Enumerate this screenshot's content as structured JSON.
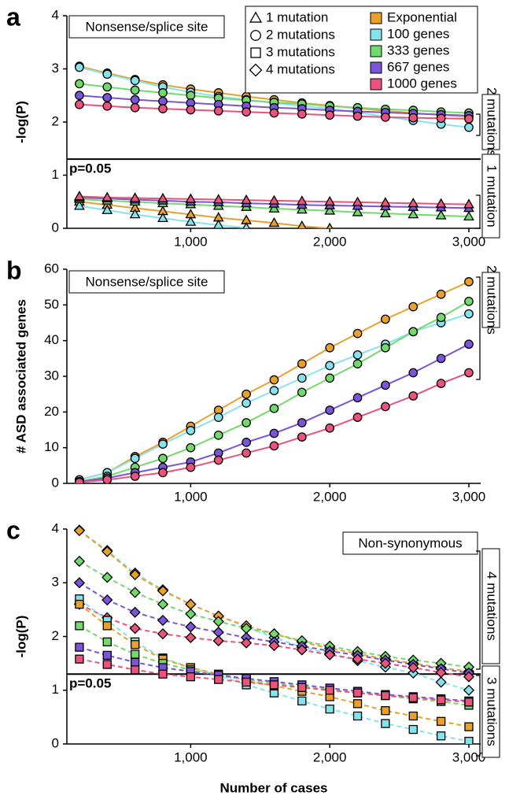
{
  "chart_data": [
    {
      "type": "line",
      "panel_label": "a",
      "ylabel": "-log(P)",
      "line_style": "solid",
      "x": [
        200,
        400,
        600,
        800,
        1000,
        1200,
        1400,
        1600,
        1800,
        2000,
        2200,
        2400,
        2600,
        2800,
        3000
      ],
      "xlim": [
        110,
        3085
      ],
      "xticks": [
        {
          "value": 1000,
          "label": "1,000"
        },
        {
          "value": 2000,
          "label": "2,000"
        },
        {
          "value": 3000,
          "label": "3,000"
        }
      ],
      "ylim": [
        0,
        4
      ],
      "yticks": [
        0,
        1,
        2,
        3,
        4
      ],
      "hline": 1.301,
      "hline_label": "p=0.05",
      "annotations": [
        "Nonsense/splice site",
        "2 mutations",
        "1 mutation"
      ],
      "legend": {
        "markers": [
          {
            "label": "1 mutation",
            "marker": "triangle"
          },
          {
            "label": "2 mutations",
            "marker": "circle"
          },
          {
            "label": "3 mutations",
            "marker": "square"
          },
          {
            "label": "4 mutations",
            "marker": "diamond"
          }
        ],
        "colors": [
          {
            "label": "Exponential",
            "color": "#e9a12b"
          },
          {
            "label": "100 genes",
            "color": "#86e3ee"
          },
          {
            "label": "333 genes",
            "color": "#72da6c"
          },
          {
            "label": "667 genes",
            "color": "#7a55d9"
          },
          {
            "label": "1000 genes",
            "color": "#e9537c"
          }
        ]
      },
      "series": [
        {
          "marker": "circle",
          "color": "#e9a12b",
          "values": [
            3.05,
            2.92,
            2.8,
            2.7,
            2.62,
            2.55,
            2.48,
            2.42,
            2.36,
            2.31,
            2.26,
            2.21,
            2.17,
            2.13,
            2.1
          ]
        },
        {
          "marker": "circle",
          "color": "#86e3ee",
          "values": [
            3.03,
            2.9,
            2.78,
            2.66,
            2.56,
            2.48,
            2.42,
            2.36,
            2.3,
            2.25,
            2.18,
            2.1,
            2.03,
            1.96,
            1.9
          ]
        },
        {
          "marker": "circle",
          "color": "#72da6c",
          "values": [
            2.72,
            2.66,
            2.6,
            2.55,
            2.5,
            2.45,
            2.41,
            2.37,
            2.34,
            2.3,
            2.27,
            2.24,
            2.22,
            2.19,
            2.17
          ]
        },
        {
          "marker": "circle",
          "color": "#7a55d9",
          "values": [
            2.5,
            2.46,
            2.42,
            2.39,
            2.36,
            2.33,
            2.3,
            2.27,
            2.25,
            2.22,
            2.2,
            2.18,
            2.16,
            2.14,
            2.12
          ]
        },
        {
          "marker": "circle",
          "color": "#e9537c",
          "values": [
            2.33,
            2.3,
            2.27,
            2.25,
            2.23,
            2.21,
            2.19,
            2.17,
            2.15,
            2.13,
            2.11,
            2.09,
            2.08,
            2.07,
            2.06
          ]
        },
        {
          "marker": "triangle",
          "color": "#e9a12b",
          "values": [
            0.5,
            0.44,
            0.38,
            0.32,
            0.26,
            0.2,
            0.15,
            0.1,
            0.04,
            0,
            null,
            null,
            null,
            null,
            null
          ]
        },
        {
          "marker": "triangle",
          "color": "#86e3ee",
          "values": [
            0.42,
            0.34,
            0.26,
            0.19,
            0.12,
            0.06,
            0.01,
            null,
            null,
            null,
            null,
            null,
            null,
            null,
            null
          ]
        },
        {
          "marker": "triangle",
          "color": "#72da6c",
          "values": [
            0.55,
            0.52,
            0.5,
            0.47,
            0.45,
            0.42,
            0.4,
            0.37,
            0.35,
            0.33,
            0.3,
            0.28,
            0.26,
            0.24,
            0.22
          ]
        },
        {
          "marker": "triangle",
          "color": "#7a55d9",
          "values": [
            0.58,
            0.56,
            0.54,
            0.52,
            0.5,
            0.49,
            0.47,
            0.46,
            0.44,
            0.43,
            0.42,
            0.41,
            0.4,
            0.39,
            0.38
          ]
        },
        {
          "marker": "triangle",
          "color": "#e9537c",
          "values": [
            0.6,
            0.58,
            0.57,
            0.56,
            0.55,
            0.54,
            0.53,
            0.52,
            0.51,
            0.5,
            0.49,
            0.48,
            0.47,
            0.46,
            0.45
          ]
        }
      ]
    },
    {
      "type": "line",
      "panel_label": "b",
      "ylabel": "# ASD associated genes",
      "line_style": "solid",
      "x": [
        200,
        400,
        600,
        800,
        1000,
        1200,
        1400,
        1600,
        1800,
        2000,
        2200,
        2400,
        2600,
        2800,
        3000
      ],
      "xlim": [
        110,
        3085
      ],
      "xticks": [
        {
          "value": 1000,
          "label": "1,000"
        },
        {
          "value": 2000,
          "label": "2,000"
        },
        {
          "value": 3000,
          "label": "3,000"
        }
      ],
      "ylim": [
        0,
        60
      ],
      "yticks": [
        0,
        10,
        20,
        30,
        40,
        50,
        60
      ],
      "annotations": [
        "Nonsense/splice site",
        "2 mutations"
      ],
      "series": [
        {
          "marker": "circle",
          "color": "#e9a12b",
          "values": [
            1,
            3,
            7.5,
            11.5,
            16,
            20.5,
            25,
            29,
            33.5,
            38,
            42,
            46,
            49.5,
            53,
            56.5
          ]
        },
        {
          "marker": "circle",
          "color": "#86e3ee",
          "values": [
            1,
            3,
            7,
            11,
            14.8,
            18.5,
            22.5,
            26,
            29.5,
            33,
            36,
            39,
            42.5,
            45,
            47.5
          ]
        },
        {
          "marker": "circle",
          "color": "#72da6c",
          "values": [
            0.5,
            2,
            4.5,
            7,
            10,
            13.5,
            17,
            21,
            25.5,
            29.5,
            33.5,
            38,
            42.5,
            46.5,
            51
          ]
        },
        {
          "marker": "circle",
          "color": "#7a55d9",
          "values": [
            0.5,
            1.5,
            3,
            4.5,
            6,
            8.5,
            11.5,
            14,
            17,
            20.5,
            24,
            27.5,
            31,
            35,
            39
          ]
        },
        {
          "marker": "circle",
          "color": "#e9537c",
          "values": [
            0.3,
            1,
            2,
            3,
            4.5,
            6.5,
            8.5,
            10.5,
            13,
            15.5,
            18.5,
            21.5,
            24.5,
            28,
            31
          ]
        }
      ]
    },
    {
      "type": "line",
      "panel_label": "c",
      "ylabel": "-log(P)",
      "xlabel": "Number of cases",
      "line_style": "dashed",
      "x": [
        200,
        400,
        600,
        800,
        1000,
        1200,
        1400,
        1600,
        1800,
        2000,
        2200,
        2400,
        2600,
        2800,
        3000
      ],
      "xlim": [
        110,
        3085
      ],
      "xticks": [
        {
          "value": 1000,
          "label": "1,000"
        },
        {
          "value": 2000,
          "label": "2,000"
        },
        {
          "value": 3000,
          "label": "3,000"
        }
      ],
      "ylim": [
        0,
        4
      ],
      "yticks": [
        0,
        1,
        2,
        3,
        4
      ],
      "hline": 1.301,
      "hline_label": "p=0.05",
      "annotations": [
        "Non-synonymous",
        "4 mutations",
        "3 mutations"
      ],
      "series": [
        {
          "marker": "diamond",
          "color": "#86e3ee",
          "values": [
            3.98,
            3.6,
            3.18,
            2.87,
            2.6,
            2.38,
            2.18,
            1.98,
            1.8,
            1.68,
            1.55,
            1.43,
            1.32,
            1.15,
            1.0
          ]
        },
        {
          "marker": "diamond",
          "color": "#e9a12b",
          "values": [
            3.97,
            3.58,
            3.15,
            2.85,
            2.6,
            2.38,
            2.2,
            2.05,
            1.9,
            1.78,
            1.68,
            1.58,
            1.5,
            1.42,
            1.35
          ]
        },
        {
          "marker": "diamond",
          "color": "#72da6c",
          "values": [
            3.4,
            3.1,
            2.82,
            2.6,
            2.42,
            2.28,
            2.15,
            2.05,
            1.92,
            1.82,
            1.72,
            1.63,
            1.56,
            1.5,
            1.43
          ]
        },
        {
          "marker": "diamond",
          "color": "#7a55d9",
          "values": [
            3.0,
            2.68,
            2.45,
            2.3,
            2.18,
            2.08,
            1.98,
            1.9,
            1.82,
            1.73,
            1.65,
            1.56,
            1.48,
            1.4,
            1.32
          ]
        },
        {
          "marker": "diamond",
          "color": "#e9537c",
          "values": [
            2.6,
            2.35,
            2.15,
            2.05,
            1.98,
            1.92,
            1.88,
            1.83,
            1.75,
            1.66,
            1.58,
            1.5,
            1.42,
            1.33,
            1.25
          ]
        },
        {
          "marker": "square",
          "color": "#86e3ee",
          "values": [
            2.7,
            2.3,
            1.9,
            1.6,
            1.42,
            1.28,
            1.1,
            0.95,
            0.8,
            0.65,
            0.52,
            0.38,
            0.27,
            0.15,
            0.05
          ]
        },
        {
          "marker": "square",
          "color": "#e9a12b",
          "values": [
            2.6,
            2.2,
            1.85,
            1.58,
            1.42,
            1.3,
            1.18,
            1.08,
            0.98,
            0.88,
            0.75,
            0.62,
            0.52,
            0.42,
            0.32
          ]
        },
        {
          "marker": "square",
          "color": "#72da6c",
          "values": [
            2.2,
            1.9,
            1.67,
            1.5,
            1.38,
            1.27,
            1.2,
            1.13,
            1.07,
            1.01,
            0.95,
            0.9,
            0.84,
            0.79,
            0.72
          ]
        },
        {
          "marker": "square",
          "color": "#7a55d9",
          "values": [
            1.8,
            1.65,
            1.52,
            1.42,
            1.35,
            1.28,
            1.22,
            1.16,
            1.1,
            1.04,
            0.98,
            0.92,
            0.88,
            0.84,
            0.8
          ]
        },
        {
          "marker": "square",
          "color": "#e9537c",
          "values": [
            1.58,
            1.48,
            1.38,
            1.3,
            1.25,
            1.2,
            1.15,
            1.1,
            1.05,
            1.0,
            0.95,
            0.9,
            0.86,
            0.82,
            0.78
          ]
        }
      ]
    }
  ]
}
